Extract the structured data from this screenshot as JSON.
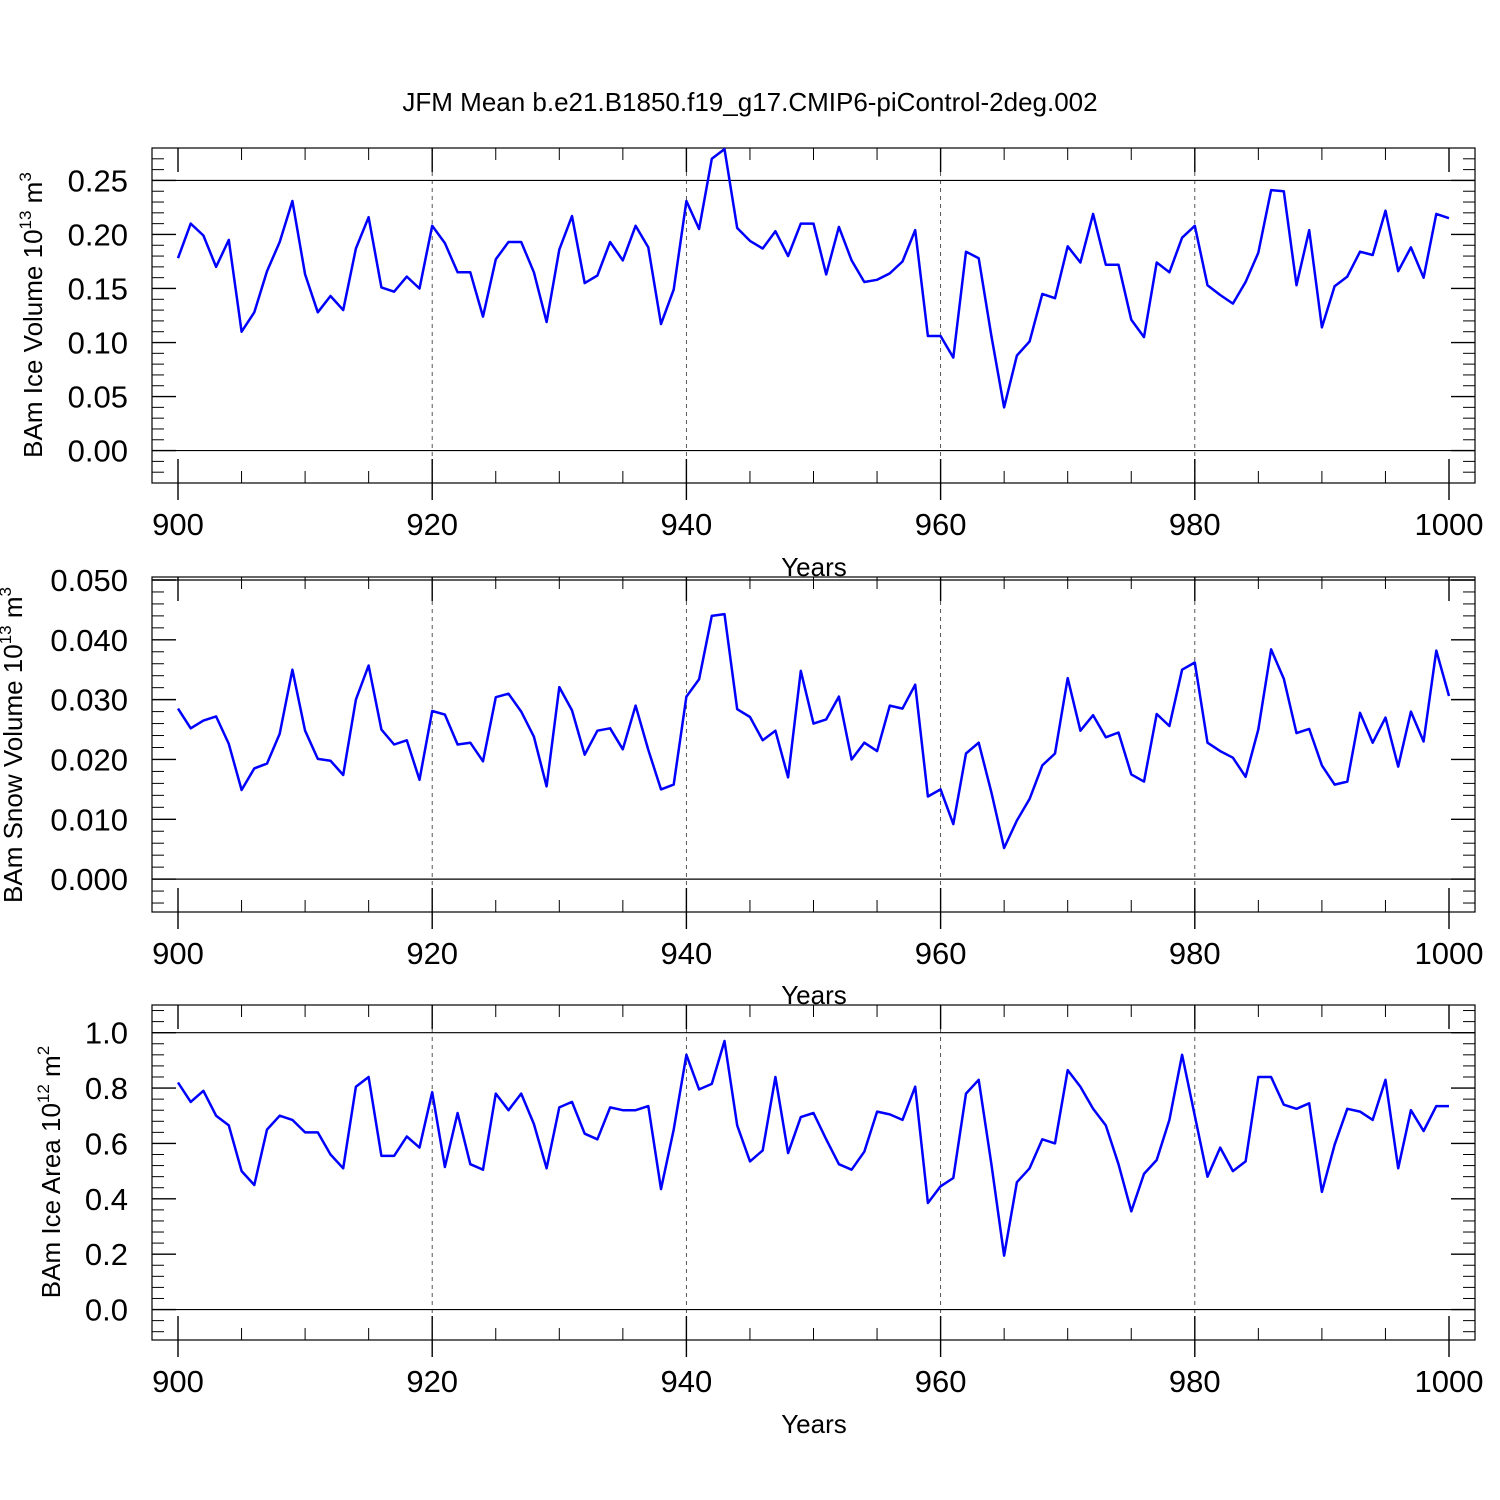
{
  "title": "JFM Mean b.e21.B1850.f19_g17.CMIP6-piControl-2deg.002",
  "chart_data": [
    {
      "type": "line",
      "ylabel": "BAm Ice Volume 10",
      "ylabel_exp": "13",
      "ylabel_unit": " m",
      "ylabel_unit_exp": "3",
      "xlabel": "Years",
      "xlim": [
        900,
        1000
      ],
      "ylim": [
        -0.03,
        0.28
      ],
      "ymin_tick": 0,
      "ymax_tick": 0.25,
      "ystep": 0.05,
      "ydecimals": 2,
      "yminor": 0.01,
      "xticks": [
        900,
        920,
        940,
        960,
        980,
        1000
      ],
      "xticklabels": [
        "900",
        "920",
        "940",
        "960",
        "980",
        "1000"
      ],
      "yticklabels": [
        "0.00",
        "0.05",
        "0.10",
        "0.15",
        "0.20",
        "0.25"
      ],
      "gridlines_x": [
        920,
        940,
        960,
        980
      ],
      "line_color": "#0000ff",
      "x_start": 900,
      "values": [
        0.178,
        0.21,
        0.199,
        0.17,
        0.195,
        0.11,
        0.128,
        0.166,
        0.193,
        0.231,
        0.163,
        0.128,
        0.143,
        0.13,
        0.187,
        0.216,
        0.151,
        0.147,
        0.161,
        0.15,
        0.208,
        0.192,
        0.165,
        0.165,
        0.124,
        0.177,
        0.193,
        0.193,
        0.165,
        0.119,
        0.186,
        0.217,
        0.155,
        0.162,
        0.193,
        0.176,
        0.208,
        0.188,
        0.117,
        0.149,
        0.231,
        0.205,
        0.27,
        0.279,
        0.206,
        0.194,
        0.187,
        0.203,
        0.18,
        0.21,
        0.21,
        0.163,
        0.207,
        0.176,
        0.156,
        0.158,
        0.164,
        0.175,
        0.204,
        0.106,
        0.106,
        0.086,
        0.184,
        0.178,
        0.106,
        0.04,
        0.088,
        0.101,
        0.145,
        0.141,
        0.189,
        0.174,
        0.219,
        0.172,
        0.172,
        0.121,
        0.105,
        0.174,
        0.165,
        0.197,
        0.208,
        0.153,
        0.144,
        0.136,
        0.156,
        0.183,
        0.241,
        0.24,
        0.153,
        0.204,
        0.114,
        0.152,
        0.161,
        0.184,
        0.181,
        0.222,
        0.166,
        0.188,
        0.16,
        0.219,
        0.215
      ]
    },
    {
      "type": "line",
      "ylabel": "BAm Snow Volume 10",
      "ylabel_exp": "13",
      "ylabel_unit": " m",
      "ylabel_unit_exp": "3",
      "xlabel": "Years",
      "xlim": [
        900,
        1000
      ],
      "ylim": [
        -0.0055,
        0.0505
      ],
      "ymin_tick": 0,
      "ymax_tick": 0.05,
      "ystep": 0.01,
      "ydecimals": 3,
      "yminor": 0.002,
      "xticks": [
        900,
        920,
        940,
        960,
        980,
        1000
      ],
      "xticklabels": [
        "900",
        "920",
        "940",
        "960",
        "980",
        "1000"
      ],
      "yticklabels": [
        "0.000",
        "0.010",
        "0.020",
        "0.030",
        "0.040",
        "0.050"
      ],
      "gridlines_x": [
        920,
        940,
        960,
        980
      ],
      "line_color": "#0000ff",
      "x_start": 900,
      "values": [
        0.0285,
        0.0252,
        0.0265,
        0.0272,
        0.0226,
        0.0149,
        0.0185,
        0.0193,
        0.0243,
        0.035,
        0.0248,
        0.0201,
        0.0198,
        0.0174,
        0.03,
        0.0357,
        0.025,
        0.0225,
        0.0232,
        0.0166,
        0.0281,
        0.0275,
        0.0225,
        0.0228,
        0.0197,
        0.0304,
        0.031,
        0.028,
        0.0238,
        0.0155,
        0.0321,
        0.0282,
        0.0208,
        0.0248,
        0.0252,
        0.0217,
        0.029,
        0.0216,
        0.015,
        0.0158,
        0.0305,
        0.0334,
        0.044,
        0.0443,
        0.0284,
        0.0271,
        0.0232,
        0.0248,
        0.017,
        0.0348,
        0.026,
        0.0267,
        0.0305,
        0.02,
        0.0228,
        0.0214,
        0.029,
        0.0285,
        0.0325,
        0.0138,
        0.015,
        0.0092,
        0.021,
        0.0228,
        0.0145,
        0.0052,
        0.0098,
        0.0134,
        0.019,
        0.021,
        0.0336,
        0.0248,
        0.0274,
        0.0237,
        0.0245,
        0.0175,
        0.0163,
        0.0276,
        0.0256,
        0.035,
        0.0362,
        0.0228,
        0.0214,
        0.0203,
        0.0171,
        0.025,
        0.0384,
        0.0335,
        0.0244,
        0.0251,
        0.019,
        0.0158,
        0.0163,
        0.0278,
        0.0228,
        0.027,
        0.0188,
        0.028,
        0.023,
        0.0382,
        0.0306
      ]
    },
    {
      "type": "line",
      "ylabel": "BAm Ice Area 10",
      "ylabel_exp": "12",
      "ylabel_unit": " m",
      "ylabel_unit_exp": "2",
      "xlabel": "Years",
      "xlim": [
        900,
        1000
      ],
      "ylim": [
        -0.11,
        1.1
      ],
      "ymin_tick": 0,
      "ymax_tick": 1.0,
      "ystep": 0.2,
      "ydecimals": 1,
      "yminor": 0.04,
      "xticks": [
        900,
        920,
        940,
        960,
        980,
        1000
      ],
      "xticklabels": [
        "900",
        "920",
        "940",
        "960",
        "980",
        "1000"
      ],
      "yticklabels": [
        "0.0",
        "0.2",
        "0.4",
        "0.6",
        "0.8",
        "1.0"
      ],
      "gridlines_x": [
        920,
        940,
        960,
        980
      ],
      "line_color": "#0000ff",
      "x_start": 900,
      "values": [
        0.82,
        0.75,
        0.79,
        0.7,
        0.665,
        0.5,
        0.45,
        0.65,
        0.7,
        0.685,
        0.64,
        0.64,
        0.56,
        0.51,
        0.805,
        0.84,
        0.555,
        0.555,
        0.625,
        0.585,
        0.785,
        0.515,
        0.71,
        0.525,
        0.505,
        0.78,
        0.72,
        0.78,
        0.67,
        0.51,
        0.73,
        0.75,
        0.635,
        0.615,
        0.73,
        0.72,
        0.72,
        0.735,
        0.435,
        0.65,
        0.92,
        0.795,
        0.815,
        0.97,
        0.665,
        0.535,
        0.575,
        0.84,
        0.565,
        0.695,
        0.71,
        0.615,
        0.525,
        0.505,
        0.57,
        0.715,
        0.705,
        0.685,
        0.805,
        0.385,
        0.445,
        0.475,
        0.78,
        0.83,
        0.525,
        0.195,
        0.46,
        0.51,
        0.615,
        0.6,
        0.865,
        0.805,
        0.725,
        0.665,
        0.525,
        0.355,
        0.49,
        0.54,
        0.685,
        0.92,
        0.7,
        0.48,
        0.585,
        0.5,
        0.535,
        0.84,
        0.84,
        0.74,
        0.725,
        0.745,
        0.425,
        0.595,
        0.725,
        0.715,
        0.685,
        0.83,
        0.51,
        0.72,
        0.645,
        0.735,
        0.735
      ]
    }
  ]
}
